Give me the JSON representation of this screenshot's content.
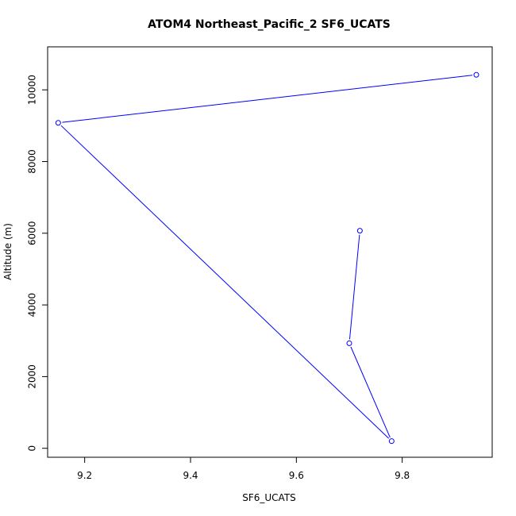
{
  "chart_data": {
    "type": "line",
    "title": "ATOM4 Northeast_Pacific_2 SF6_UCATS",
    "xlabel": "SF6_UCATS",
    "ylabel": "Altitude (m)",
    "xlim": [
      9.13,
      9.97
    ],
    "ylim": [
      -250,
      11200
    ],
    "xticks": [
      9.2,
      9.4,
      9.6,
      9.8
    ],
    "xtick_labels": [
      "9.2",
      "9.4",
      "9.6",
      "9.8"
    ],
    "yticks": [
      0,
      2000,
      4000,
      6000,
      8000,
      10000
    ],
    "ytick_labels": [
      "0",
      "2000",
      "4000",
      "6000",
      "8000",
      "10000"
    ],
    "grid": false,
    "series": [
      {
        "color": "#0000ff",
        "marker": "open-circle",
        "points": [
          {
            "x": 9.94,
            "y": 10420
          },
          {
            "x": 9.15,
            "y": 9080
          },
          {
            "x": 9.78,
            "y": 200
          },
          {
            "x": 9.7,
            "y": 2930
          },
          {
            "x": 9.72,
            "y": 6070
          }
        ]
      }
    ]
  }
}
